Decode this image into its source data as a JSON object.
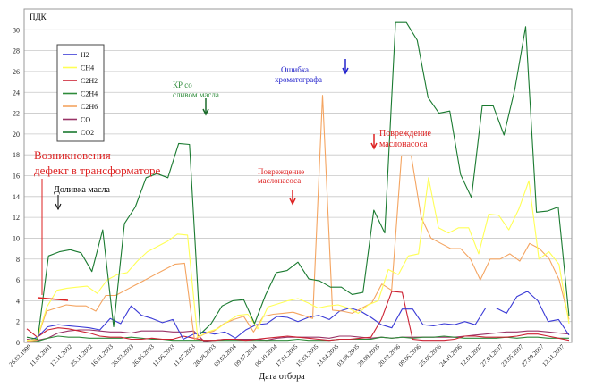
{
  "chart_data": {
    "type": "line",
    "ylabel": "ПДК",
    "xlabel": "Дата отбора",
    "ylim": [
      0,
      32
    ],
    "yticks": [
      0,
      2,
      4,
      6,
      8,
      10,
      12,
      14,
      16,
      18,
      20,
      22,
      24,
      26,
      28,
      30
    ],
    "grid": true,
    "legend_position": "top-left",
    "x_ticks": [
      "26.02.1999",
      "11.03.2001",
      "12.11.2002",
      "25.11.2002",
      "16.01.2003",
      "26.02.2003",
      "26.05.2003",
      "11.06.2003",
      "11.07.2003",
      "28.08.2003",
      "09.02.2004",
      "09.07.2004",
      "06.10.2004",
      "17.01.2005",
      "15.03.2005",
      "13.04.2005",
      "03.08.2005",
      "29.09.2005",
      "20.02.2006",
      "09.06.2006",
      "25.08.2006",
      "24.10.2006",
      "12.01.2007",
      "27.03.2007",
      "23.05.2007",
      "27.09.2007",
      "12.11.2007"
    ],
    "colors": {
      "H2": "#3b3bd6",
      "CH4": "#ffff55",
      "C2H2": "#cc2233",
      "C2H4": "#2e8b3a",
      "C2H6": "#f4a460",
      "CO": "#993366",
      "CO2": "#1a7a30"
    },
    "series": [
      {
        "name": "H2",
        "values": [
          0.1,
          0.5,
          1.5,
          1.7,
          1.6,
          1.5,
          1.4,
          1.2,
          2.3,
          1.8,
          3.5,
          2.6,
          2.3,
          1.9,
          2.2,
          0.3,
          0.8,
          1.0,
          0.8,
          1.0,
          0.4,
          1.2,
          1.7,
          1.8,
          2.5,
          2.4,
          2.0,
          2.4,
          2.6,
          2.2,
          3.0,
          3.3,
          3.0,
          2.4,
          1.7,
          1.4,
          3.2,
          3.2,
          1.7,
          1.6,
          1.8,
          1.7,
          2.0,
          1.7,
          3.3,
          3.3,
          2.8,
          4.4,
          4.9,
          4.0,
          2.0,
          2.2,
          0.7
        ]
      },
      {
        "name": "CH4",
        "values": [
          0.2,
          0.3,
          3.4,
          5.0,
          5.2,
          5.3,
          5.4,
          4.7,
          6.0,
          6.5,
          6.7,
          7.8,
          8.7,
          9.2,
          9.7,
          10.4,
          10.3,
          0.5,
          1.0,
          1.3,
          2.0,
          2.6,
          2.7,
          1.3,
          3.4,
          3.7,
          4.0,
          4.2,
          3.8,
          3.3,
          3.5,
          3.6,
          3.3,
          2.8,
          3.6,
          4.0,
          7.0,
          6.5,
          8.3,
          8.5,
          15.8,
          11.0,
          10.5,
          11.0,
          11.0,
          8.5,
          12.3,
          12.2,
          10.8,
          12.8,
          15.5,
          8.0,
          8.7,
          7.5,
          1.8
        ]
      },
      {
        "name": "C2H2",
        "values": [
          1.3,
          0.5,
          1.2,
          1.4,
          1.3,
          1.1,
          0.9,
          0.6,
          0.5,
          0.5,
          0.3,
          0.3,
          0.4,
          0.3,
          0.3,
          0.6,
          0.4,
          0.2,
          0.2,
          0.3,
          0.3,
          0.2,
          0.3,
          0.4,
          0.5,
          0.6,
          0.5,
          0.4,
          0.3,
          0.2,
          0.3,
          0.3,
          0.4,
          0.5,
          2.2,
          4.9,
          4.8,
          0.3,
          0.2,
          0.2,
          0.2,
          0.3,
          0.6,
          0.6,
          0.5,
          0.5,
          0.5,
          0.6,
          0.8,
          0.8,
          0.6,
          0.4,
          0.2
        ]
      },
      {
        "name": "C2H4",
        "values": [
          0.1,
          0.1,
          0.4,
          0.6,
          0.5,
          0.5,
          0.4,
          0.4,
          0.4,
          0.4,
          0.5,
          0.4,
          0.3,
          0.3,
          0.2,
          0.2,
          0.2,
          0.2,
          0.2,
          0.2,
          0.2,
          0.2,
          0.2,
          0.2,
          0.2,
          0.2,
          0.3,
          0.2,
          0.2,
          0.2,
          0.3,
          0.3,
          0.3,
          0.3,
          0.5,
          0.4,
          0.5,
          0.4,
          0.5,
          0.5,
          0.6,
          0.5,
          0.4,
          0.4,
          0.4,
          0.4,
          0.5,
          0.4,
          0.5,
          0.5,
          0.4,
          0.4,
          0.4
        ]
      },
      {
        "name": "C2H6",
        "values": [
          0.1,
          0.2,
          3.0,
          3.3,
          3.6,
          3.5,
          3.5,
          3.0,
          4.5,
          4.5,
          5.0,
          5.5,
          6.0,
          6.5,
          7.0,
          7.5,
          7.6,
          0.3,
          0.8,
          1.1,
          1.8,
          2.2,
          2.5,
          1.0,
          2.5,
          2.7,
          2.8,
          2.9,
          2.6,
          2.3,
          23.7,
          3.1,
          3.0,
          2.8,
          3.3,
          3.8,
          5.6,
          5.0,
          17.9,
          17.9,
          12.0,
          10.0,
          9.5,
          9.0,
          9.0,
          8.0,
          6.0,
          8.0,
          8.0,
          8.5,
          7.8,
          9.5,
          9.0,
          8.0,
          6.0,
          2.2
        ]
      },
      {
        "name": "CO",
        "values": [
          0.3,
          0.2,
          0.4,
          0.9,
          1.1,
          1.2,
          1.2,
          1.1,
          1.0,
          1.0,
          0.9,
          1.1,
          1.1,
          1.1,
          1.0,
          1.0,
          1.1,
          0.1,
          0.2,
          0.3,
          0.3,
          0.3,
          0.3,
          0.2,
          0.4,
          0.5,
          0.5,
          0.5,
          0.5,
          0.4,
          0.6,
          0.6,
          0.5,
          0.4,
          0.5,
          0.4,
          0.5,
          0.5,
          0.5,
          0.5,
          0.5,
          0.5,
          0.6,
          0.7,
          0.8,
          0.9,
          1.0,
          1.0,
          1.1,
          1.1,
          1.0,
          0.9,
          0.8
        ]
      },
      {
        "name": "CO2",
        "values": [
          0.5,
          0.3,
          8.3,
          8.7,
          8.9,
          8.6,
          6.8,
          10.8,
          1.5,
          11.4,
          13.0,
          15.8,
          16.2,
          15.8,
          19.1,
          19.0,
          0.8,
          1.8,
          3.5,
          4.0,
          4.1,
          1.8,
          4.5,
          6.7,
          6.9,
          7.7,
          6.1,
          5.9,
          5.3,
          5.3,
          4.6,
          4.8,
          12.7,
          10.5,
          30.7,
          30.7,
          29.0,
          23.5,
          22.0,
          22.2,
          16.1,
          13.9,
          22.7,
          22.7,
          19.9,
          24.3,
          30.3,
          12.5,
          12.6,
          13.0,
          2.5
        ]
      }
    ],
    "annotations": [
      {
        "text": "Возникновения",
        "color": "#dd2222"
      },
      {
        "text": "дефект в трансформаторе",
        "color": "#dd2222"
      },
      {
        "text": "Доливка масла",
        "color": "#000000"
      },
      {
        "text": "КР со",
        "color": "#2e8b3a"
      },
      {
        "text": "сливом масла",
        "color": "#2e8b3a"
      },
      {
        "text": "Ошибка",
        "color": "#2222cc"
      },
      {
        "text": "хроматографа",
        "color": "#2222cc"
      },
      {
        "text": "Повреждение",
        "color": "#dd2222"
      },
      {
        "text": "маслонасоса",
        "color": "#dd2222"
      },
      {
        "text": "Повреждение",
        "color": "#dd2222"
      },
      {
        "text": "маслонасоса",
        "color": "#dd2222"
      }
    ]
  }
}
